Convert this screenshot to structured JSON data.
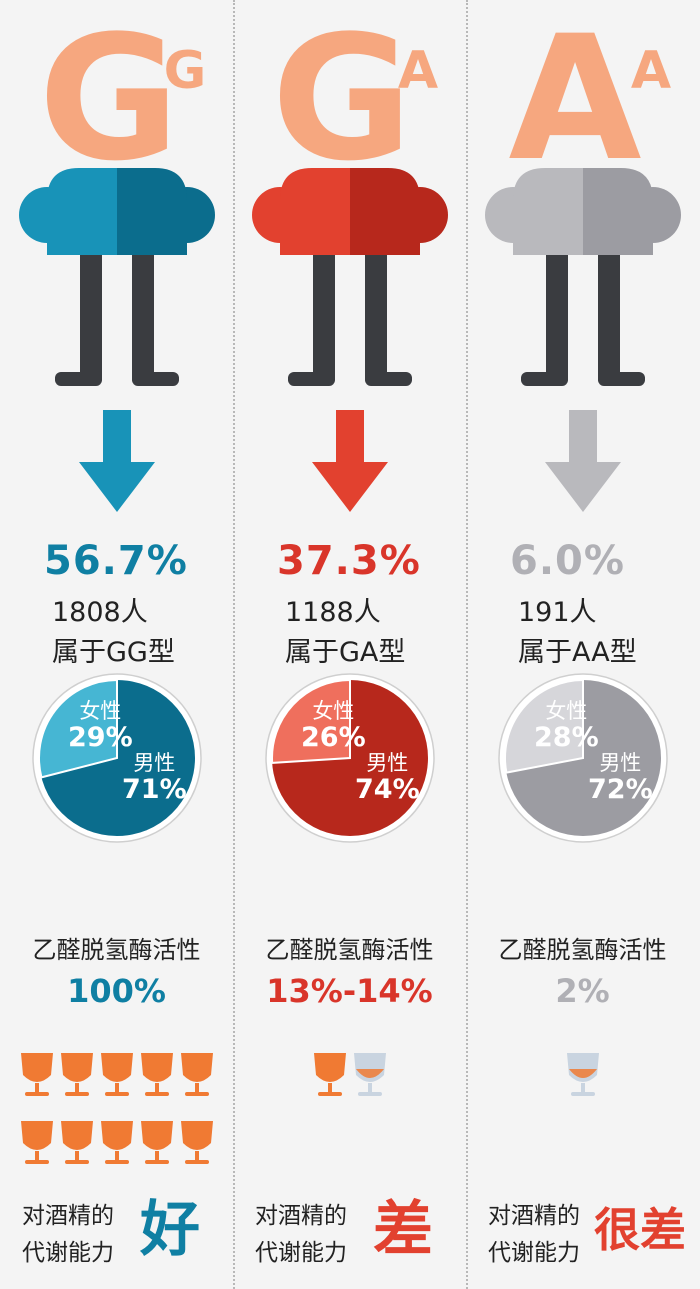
{
  "columns": [
    {
      "id": "gg",
      "letters": [
        "G",
        "G"
      ],
      "color": "#1893b8",
      "color_dark": "#0b6d8d",
      "color_light": "#46b6d3",
      "percent": "56.7%",
      "count": "1808人",
      "type": "属于GG型",
      "female_label": "女性",
      "female_pct": "29%",
      "female_fraction": 0.29,
      "male_label": "男性",
      "male_pct": "71%",
      "activity_label": "乙醛脱氢酶活性",
      "activity_value": "100%",
      "full_glasses": 10,
      "empty_glasses": 0,
      "metab_line1": "对酒精的",
      "metab_line2": "代谢能力",
      "verdict": "好"
    },
    {
      "id": "ga",
      "letters": [
        "G",
        "A"
      ],
      "color": "#e2412f",
      "color_dark": "#b7281c",
      "color_light": "#ef6f5d",
      "percent": "37.3%",
      "count": "1188人",
      "type": "属于GA型",
      "female_label": "女性",
      "female_pct": "26%",
      "female_fraction": 0.26,
      "male_label": "男性",
      "male_pct": "74%",
      "activity_label": "乙醛脱氢酶活性",
      "activity_value": "13%-14%",
      "full_glasses": 1,
      "empty_glasses": 1,
      "metab_line1": "对酒精的",
      "metab_line2": "代谢能力",
      "verdict": "差"
    },
    {
      "id": "aa",
      "letters": [
        "A",
        "A"
      ],
      "color": "#b9b9bd",
      "color_dark": "#9c9ca2",
      "color_light": "#d6d6da",
      "percent": "6.0%",
      "count": "191人",
      "type": "属于AA型",
      "female_label": "女性",
      "female_pct": "28%",
      "female_fraction": 0.28,
      "male_label": "男性",
      "male_pct": "72%",
      "activity_label": "乙醛脱氢酶活性",
      "activity_value": "2%",
      "full_glasses": 0,
      "empty_glasses": 1,
      "metab_line1": "对酒精的",
      "metab_line2": "代谢能力",
      "verdict": "很差"
    }
  ],
  "colors": {
    "head": "#f6a77f",
    "legs": "#3a3c40",
    "glass_fill": "#f07a33",
    "glass_empty": "#c9d4e0",
    "verdict": "#e2412f",
    "pct_text_dark": "#0f7fa3",
    "pct_text_red": "#d9352a",
    "pct_text_grey": "#b0b0b5"
  }
}
